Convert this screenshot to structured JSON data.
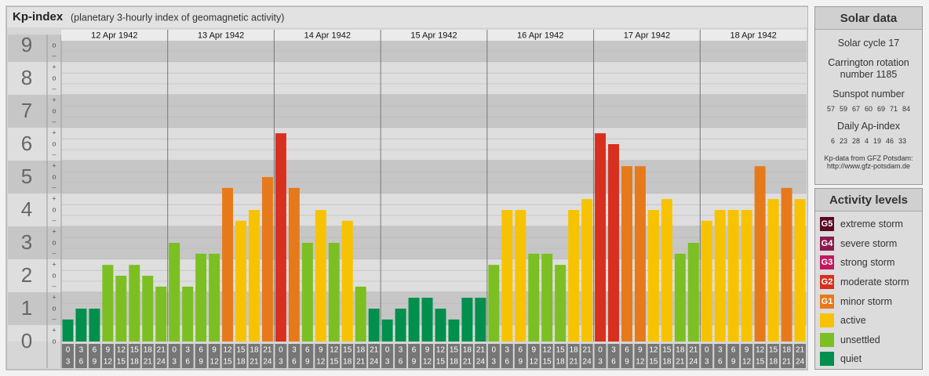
{
  "chart_data": {
    "type": "bar",
    "title": "Kp-index",
    "subtitle": "(planetary 3-hourly index of geomagnetic activity)",
    "ylim": [
      0,
      9.33
    ],
    "yticks": [
      0,
      1,
      2,
      3,
      4,
      5,
      6,
      7,
      8,
      9
    ],
    "minor_ticks": [
      {
        "value": 0,
        "label": "o"
      },
      {
        "value": 0.33,
        "label": "+"
      },
      {
        "value": 0.67,
        "label": "–"
      },
      {
        "value": 1,
        "label": "o"
      },
      {
        "value": 1.33,
        "label": "+"
      },
      {
        "value": 1.67,
        "label": "–"
      },
      {
        "value": 2,
        "label": "o"
      },
      {
        "value": 2.33,
        "label": "+"
      },
      {
        "value": 2.67,
        "label": "–"
      },
      {
        "value": 3,
        "label": "o"
      },
      {
        "value": 3.33,
        "label": "+"
      },
      {
        "value": 3.67,
        "label": "–"
      },
      {
        "value": 4,
        "label": "o"
      },
      {
        "value": 4.33,
        "label": "+"
      },
      {
        "value": 4.67,
        "label": "–"
      },
      {
        "value": 5,
        "label": "o"
      },
      {
        "value": 5.33,
        "label": "+"
      },
      {
        "value": 5.67,
        "label": "–"
      },
      {
        "value": 6,
        "label": "o"
      },
      {
        "value": 6.33,
        "label": "+"
      },
      {
        "value": 6.67,
        "label": "–"
      },
      {
        "value": 7,
        "label": "o"
      },
      {
        "value": 7.33,
        "label": "+"
      },
      {
        "value": 7.67,
        "label": "–"
      },
      {
        "value": 8,
        "label": "o"
      },
      {
        "value": 8.33,
        "label": "+"
      },
      {
        "value": 8.67,
        "label": "–"
      },
      {
        "value": 9,
        "label": "o"
      }
    ],
    "hours": [
      [
        "0",
        "3"
      ],
      [
        "3",
        "6"
      ],
      [
        "6",
        "9"
      ],
      [
        "9",
        "12"
      ],
      [
        "12",
        "15"
      ],
      [
        "15",
        "18"
      ],
      [
        "18",
        "21"
      ],
      [
        "21",
        "24"
      ]
    ],
    "days": [
      {
        "date": "12 Apr 1942",
        "values": [
          0.67,
          1,
          1,
          2.33,
          2,
          2.33,
          2,
          1.67
        ],
        "colors": [
          "#008f4c",
          "#008f4c",
          "#008f4c",
          "#7cbf22",
          "#7cbf22",
          "#7cbf22",
          "#7cbf22",
          "#7cbf22"
        ]
      },
      {
        "date": "13 Apr 1942",
        "values": [
          3,
          1.67,
          2.67,
          2.67,
          4.67,
          3.67,
          4,
          5
        ],
        "colors": [
          "#7cbf22",
          "#7cbf22",
          "#7cbf22",
          "#7cbf22",
          "#e67a1b",
          "#f7c300",
          "#f7c300",
          "#e67a1b"
        ]
      },
      {
        "date": "14 Apr 1942",
        "values": [
          6.33,
          4.67,
          3,
          4,
          3,
          3.67,
          1.67,
          1
        ],
        "colors": [
          "#d8301f",
          "#e67a1b",
          "#7cbf22",
          "#f7c300",
          "#7cbf22",
          "#f7c300",
          "#7cbf22",
          "#008f4c"
        ]
      },
      {
        "date": "15 Apr 1942",
        "values": [
          0.67,
          1,
          1.33,
          1.33,
          1,
          0.67,
          1.33,
          1.33
        ],
        "colors": [
          "#008f4c",
          "#008f4c",
          "#008f4c",
          "#008f4c",
          "#008f4c",
          "#008f4c",
          "#008f4c",
          "#008f4c"
        ]
      },
      {
        "date": "16 Apr 1942",
        "values": [
          2.33,
          4,
          4,
          2.67,
          2.67,
          2.33,
          4,
          4.33
        ],
        "colors": [
          "#7cbf22",
          "#f7c300",
          "#f7c300",
          "#7cbf22",
          "#7cbf22",
          "#7cbf22",
          "#f7c300",
          "#f7c300"
        ]
      },
      {
        "date": "17 Apr 1942",
        "values": [
          6.33,
          6,
          5.33,
          5.33,
          4,
          4.33,
          2.67,
          3
        ],
        "colors": [
          "#d8301f",
          "#d8301f",
          "#e67a1b",
          "#e67a1b",
          "#f7c300",
          "#f7c300",
          "#7cbf22",
          "#7cbf22"
        ]
      },
      {
        "date": "18 Apr 1942",
        "values": [
          3.67,
          4,
          4,
          4,
          5.33,
          4.33,
          4.67,
          4.33
        ],
        "colors": [
          "#f7c300",
          "#f7c300",
          "#f7c300",
          "#f7c300",
          "#e67a1b",
          "#f7c300",
          "#e67a1b",
          "#f7c300"
        ]
      }
    ]
  },
  "solar_data": {
    "title": "Solar data",
    "cycle": "Solar cycle 17",
    "rotation": "Carrington rotation number 1185",
    "sunspot_title": "Sunspot number",
    "sunspot_numbers": [
      57,
      59,
      67,
      60,
      69,
      71,
      84
    ],
    "ap_title": "Daily Ap-index",
    "ap_values": [
      6,
      23,
      28,
      4,
      19,
      46,
      33
    ],
    "source": "Kp-data from GFZ Potsdam:",
    "url": "http://www.gfz-potsdam.de"
  },
  "activity_levels": {
    "title": "Activity levels",
    "levels": [
      {
        "code": "G5",
        "label": "extreme storm",
        "color": "#5a0a24"
      },
      {
        "code": "G4",
        "label": "severe storm",
        "color": "#8c1a4e"
      },
      {
        "code": "G3",
        "label": "strong storm",
        "color": "#c2185e"
      },
      {
        "code": "G2",
        "label": "moderate storm",
        "color": "#d8301f"
      },
      {
        "code": "G1",
        "label": "minor storm",
        "color": "#e67a1b"
      },
      {
        "label": "active",
        "color": "#f7c300"
      },
      {
        "label": "unsettled",
        "color": "#7cbf22"
      },
      {
        "label": "quiet",
        "color": "#008f4c"
      }
    ]
  }
}
